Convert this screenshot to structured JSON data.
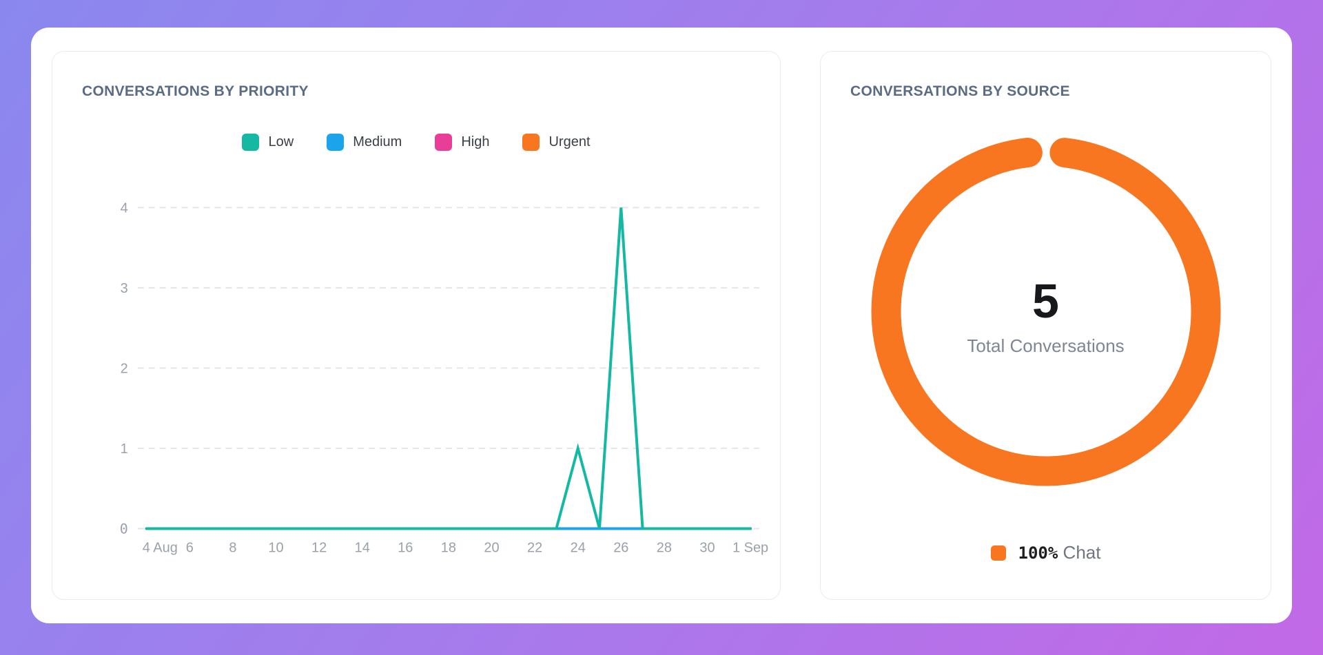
{
  "theme": {
    "background_gradient_from": "#8a88ef",
    "background_gradient_to": "#c269e7",
    "card_border": "#e9ebef",
    "title_color": "#5b6b84",
    "axis_label_color": "#9aa1ab",
    "legend_text_color": "#3a3f47",
    "grid_color": "#e2e5ea"
  },
  "cards": {
    "priority": {
      "title": "CONVERSATIONS BY PRIORITY"
    },
    "source": {
      "title": "CONVERSATIONS BY SOURCE",
      "center_value": "5",
      "center_label": "Total Conversations",
      "legend": [
        {
          "pct": "100%",
          "label": "Chat",
          "color": "#f7761f"
        }
      ]
    }
  },
  "chart_data": [
    {
      "type": "line",
      "title": "CONVERSATIONS BY PRIORITY",
      "x_unit": "date",
      "x_start": "4 Aug",
      "x_end": "1 Sep",
      "x_tick_labels": [
        "4 Aug",
        "6",
        "8",
        "10",
        "12",
        "14",
        "16",
        "18",
        "20",
        "22",
        "24",
        "26",
        "28",
        "30",
        "1 Sep"
      ],
      "x_tick_every_days": 2,
      "ylim": [
        0,
        4
      ],
      "y_ticks": [
        0,
        1,
        2,
        3,
        4
      ],
      "grid": "horizontal-dashed",
      "legend_position": "top",
      "series": [
        {
          "name": "Low",
          "color": "#15b8a3",
          "values": [
            0,
            0,
            0,
            0,
            0,
            0,
            0,
            0,
            0,
            0,
            0,
            0,
            0,
            0,
            0,
            0,
            0,
            0,
            0,
            0,
            1,
            0,
            4,
            0,
            0,
            0,
            0,
            0,
            0
          ]
        },
        {
          "name": "Medium",
          "color": "#1ba4eb",
          "values": [
            0,
            0,
            0,
            0,
            0,
            0,
            0,
            0,
            0,
            0,
            0,
            0,
            0,
            0,
            0,
            0,
            0,
            0,
            0,
            0,
            0,
            0,
            0,
            0,
            0,
            0,
            0,
            0,
            0
          ]
        },
        {
          "name": "High",
          "color": "#e83e98",
          "values": [
            0,
            0,
            0,
            0,
            0,
            0,
            0,
            0,
            0,
            0,
            0,
            0,
            0,
            0,
            0,
            0,
            0,
            0,
            0,
            0,
            0,
            0,
            0,
            0,
            0,
            0,
            0,
            0,
            0
          ]
        },
        {
          "name": "Urgent",
          "color": "#f7761f",
          "values": [
            0,
            0,
            0,
            0,
            0,
            0,
            0,
            0,
            0,
            0,
            0,
            0,
            0,
            0,
            0,
            0,
            0,
            0,
            0,
            0,
            0,
            0,
            0,
            0,
            0,
            0,
            0,
            0,
            0
          ]
        }
      ]
    },
    {
      "type": "pie",
      "subtype": "donut",
      "title": "CONVERSATIONS BY SOURCE",
      "segments": [
        {
          "label": "Chat",
          "pct": 100,
          "color": "#f7761f"
        }
      ],
      "center_value": "5",
      "center_label": "Total Conversations",
      "legend_position": "bottom"
    }
  ]
}
